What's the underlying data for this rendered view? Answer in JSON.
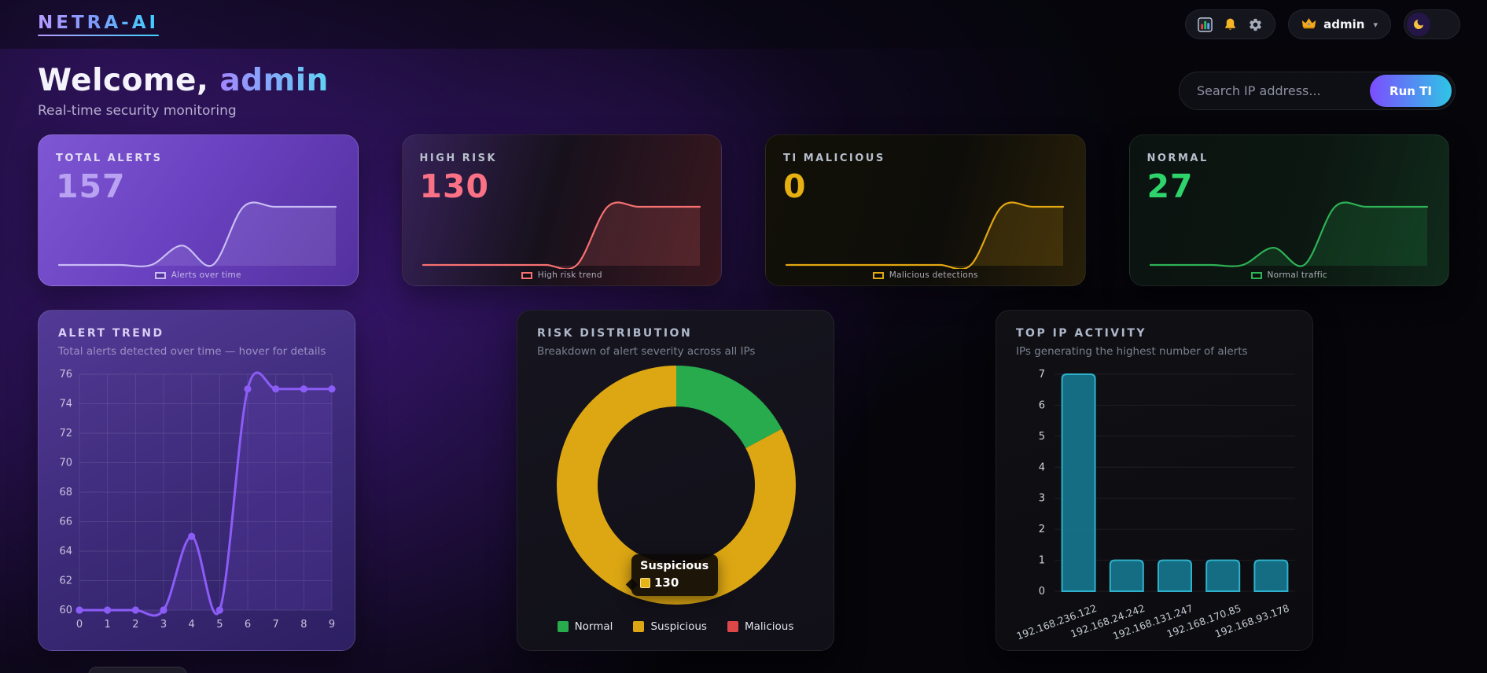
{
  "topbar": {
    "logo": "NETRA-AI",
    "icons": [
      "analytics-icon",
      "notifications-icon",
      "settings-icon"
    ],
    "user": "admin",
    "caret": "▾",
    "theme_mode": "dark"
  },
  "hero": {
    "welcome_prefix": "Welcome,",
    "username": "admin",
    "subtitle": "Real-time security monitoring",
    "search_placeholder": "Search IP address...",
    "run_button": "Run TI"
  },
  "stat_cards": [
    {
      "label": "TOTAL ALERTS",
      "value": "157",
      "legend": "Alerts over time",
      "color": "#c9bdf5",
      "value_color": "#b9a2f2",
      "spark": [
        60,
        60,
        60,
        60,
        65,
        60,
        75,
        75,
        75,
        75
      ]
    },
    {
      "label": "HIGH RISK",
      "value": "130",
      "legend": "High risk trend",
      "color": "#f87171",
      "value_color": "#fb7185",
      "spark": [
        0,
        0,
        0,
        0,
        0,
        0,
        130,
        130,
        130,
        130
      ]
    },
    {
      "label": "TI MALICIOUS",
      "value": "0",
      "legend": "Malicious detections",
      "color": "#e3a711",
      "value_color": "#e7b012",
      "spark": [
        0,
        0,
        0,
        0,
        0,
        0,
        0,
        110,
        110,
        110
      ]
    },
    {
      "label": "NORMAL",
      "value": "27",
      "legend": "Normal traffic",
      "color": "#2eb356",
      "value_color": "#2fd36b",
      "spark": [
        0,
        0,
        0,
        0,
        8,
        0,
        27,
        27,
        27,
        27
      ]
    }
  ],
  "chart_data": [
    {
      "type": "line",
      "title": "ALERT TREND",
      "subtitle": "Total alerts detected over time — hover for details",
      "x": [
        0,
        1,
        2,
        3,
        4,
        5,
        6,
        7,
        8,
        9
      ],
      "values": [
        60,
        60,
        60,
        60,
        65,
        60,
        75,
        75,
        75,
        75
      ],
      "ylim": [
        60,
        76
      ],
      "ytick_step": 2,
      "series_color": "#8b5cf6",
      "grid": true,
      "legend_position": "none"
    },
    {
      "type": "pie",
      "title": "RISK DISTRIBUTION",
      "subtitle": "Breakdown of alert severity across all IPs",
      "labels": [
        "Normal",
        "Suspicious",
        "Malicious"
      ],
      "values": [
        27,
        130,
        0
      ],
      "colors": [
        "#27ab4d",
        "#dda713",
        "#dc4747"
      ],
      "legend_position": "bottom",
      "tooltip": {
        "title": "Suspicious",
        "value": "130"
      }
    },
    {
      "type": "bar",
      "title": "TOP IP ACTIVITY",
      "subtitle": "IPs generating the highest number of alerts",
      "categories": [
        "192.168.236.122",
        "192.168.24.242",
        "192.168.131.247",
        "192.168.170.85",
        "192.168.93.178"
      ],
      "values": [
        7,
        1,
        1,
        1,
        1
      ],
      "ylim": [
        0,
        7
      ],
      "ytick_step": 1,
      "bar_color": "#15758d",
      "bar_border": "#2fb1cc",
      "grid": true
    }
  ]
}
